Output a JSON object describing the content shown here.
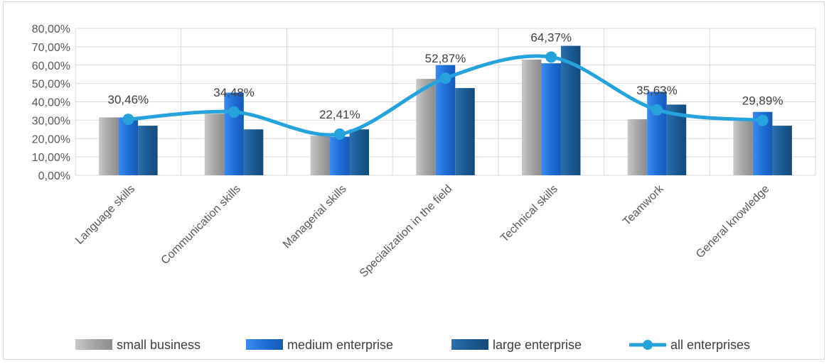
{
  "chart_data": {
    "type": "bar",
    "categories": [
      "Language skills",
      "Communication skills",
      "Managerial skills",
      "Specialization in the field",
      "Technical skills",
      "Teamwork",
      "General knowledge"
    ],
    "ylim": [
      0,
      80
    ],
    "yticks": [
      "0,00%",
      "10,00%",
      "20,00%",
      "30,00%",
      "40,00%",
      "50,00%",
      "60,00%",
      "70,00%",
      "80,00%"
    ],
    "grid": true,
    "legend_position": "bottom",
    "series": [
      {
        "name": "small business",
        "kind": "bar",
        "color": "#a6a6a6",
        "values": [
          31.5,
          33.5,
          21.5,
          52.5,
          63.0,
          30.5,
          29.5
        ]
      },
      {
        "name": "medium enterprise",
        "kind": "bar",
        "color": "#1f6fd6",
        "values": [
          31.5,
          45.0,
          21.0,
          60.0,
          61.0,
          45.5,
          34.5
        ]
      },
      {
        "name": "large enterprise",
        "kind": "bar",
        "color": "#1b5a93",
        "values": [
          27.0,
          25.0,
          25.0,
          47.5,
          70.5,
          38.5,
          27.0
        ]
      },
      {
        "name": "all enterprises",
        "kind": "line",
        "color": "#26a3dc",
        "values": [
          30.46,
          34.48,
          22.41,
          52.87,
          64.37,
          35.63,
          29.89
        ],
        "labels": [
          "30,46%",
          "34,48%",
          "22,41%",
          "52,87%",
          "64,37%",
          "35,63%",
          "29,89%"
        ]
      }
    ]
  }
}
